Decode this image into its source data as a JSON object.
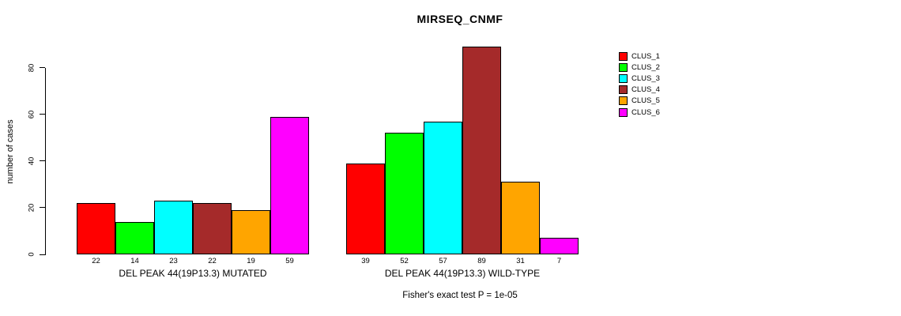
{
  "chart_data": {
    "type": "bar",
    "title": "MIRSEQ_CNMF",
    "ylabel": "number of cases",
    "xlabel": "",
    "annotation": "Fisher's exact test P = 1e-05",
    "yticks": [
      0,
      20,
      40,
      60,
      80
    ],
    "ylim": [
      0,
      89
    ],
    "grid": false,
    "legend_position": "right",
    "series_names": [
      "CLUS_1",
      "CLUS_2",
      "CLUS_3",
      "CLUS_4",
      "CLUS_5",
      "CLUS_6"
    ],
    "series_colors": [
      "#FF0000",
      "#00FF00",
      "#00FFFF",
      "#A52A2A",
      "#FFA500",
      "#FF00FF"
    ],
    "groups": [
      {
        "label": "DEL PEAK 44(19P13.3) MUTATED",
        "values": [
          22,
          14,
          23,
          22,
          19,
          59
        ]
      },
      {
        "label": "DEL PEAK 44(19P13.3) WILD-TYPE",
        "values": [
          39,
          52,
          57,
          89,
          31,
          7
        ]
      }
    ]
  },
  "legend": {
    "items": [
      {
        "label": "CLUS_1",
        "color": "#FF0000"
      },
      {
        "label": "CLUS_2",
        "color": "#00FF00"
      },
      {
        "label": "CLUS_3",
        "color": "#00FFFF"
      },
      {
        "label": "CLUS_4",
        "color": "#A52A2A"
      },
      {
        "label": "CLUS_5",
        "color": "#FFA500"
      },
      {
        "label": "CLUS_6",
        "color": "#FF00FF"
      }
    ]
  }
}
